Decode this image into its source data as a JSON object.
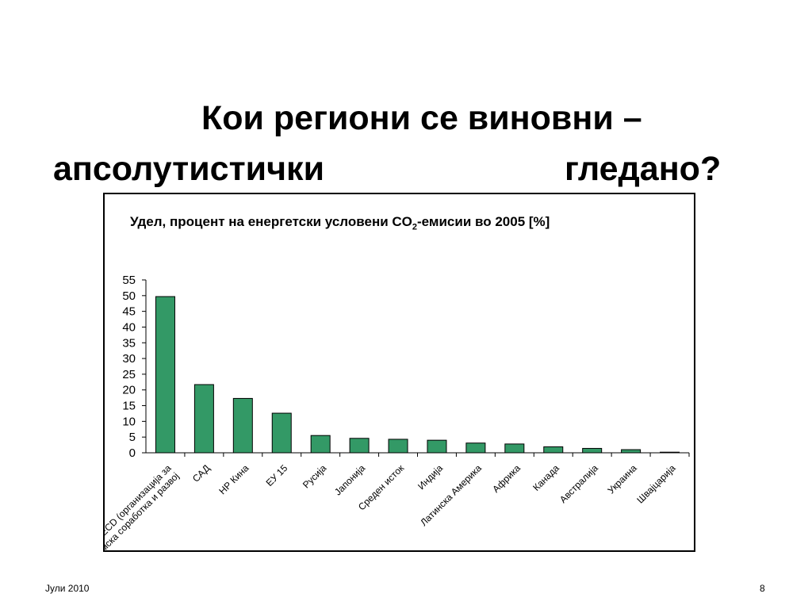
{
  "slide": {
    "title_line1": "Кои региони се виновни –",
    "title_line2_left": "апсолутистички",
    "title_line2_right": "гледано?",
    "footer_date": "Јули 2010",
    "footer_page": "8"
  },
  "chart_data": {
    "type": "bar",
    "title_prefix": "Удел, процент на енергетски условени CO",
    "title_sub": "2",
    "title_suffix": "-емисии во 2005 [%]",
    "categories": [
      [
        "OECD (организација за",
        "економска соработка и развој"
      ],
      [
        "САД"
      ],
      [
        "НР Кина"
      ],
      [
        "ЕУ 15"
      ],
      [
        "Русија"
      ],
      [
        "Јапонија"
      ],
      [
        "Среден исток"
      ],
      [
        "Индија"
      ],
      [
        "Латинска Америка"
      ],
      [
        "Африка"
      ],
      [
        "Канада"
      ],
      [
        "Австралија"
      ],
      [
        "Украина"
      ],
      [
        "Швајцарија"
      ]
    ],
    "values": [
      49.7,
      21.7,
      17.3,
      12.6,
      5.5,
      4.6,
      4.3,
      4.0,
      3.1,
      2.8,
      1.9,
      1.4,
      1.0,
      0.2
    ],
    "yticks": [
      "0",
      "5",
      "10",
      "15",
      "20",
      "25",
      "30",
      "35",
      "40",
      "45",
      "50",
      "55"
    ],
    "ylim": [
      0,
      55
    ],
    "bar_color": "#339966",
    "grid": false
  }
}
